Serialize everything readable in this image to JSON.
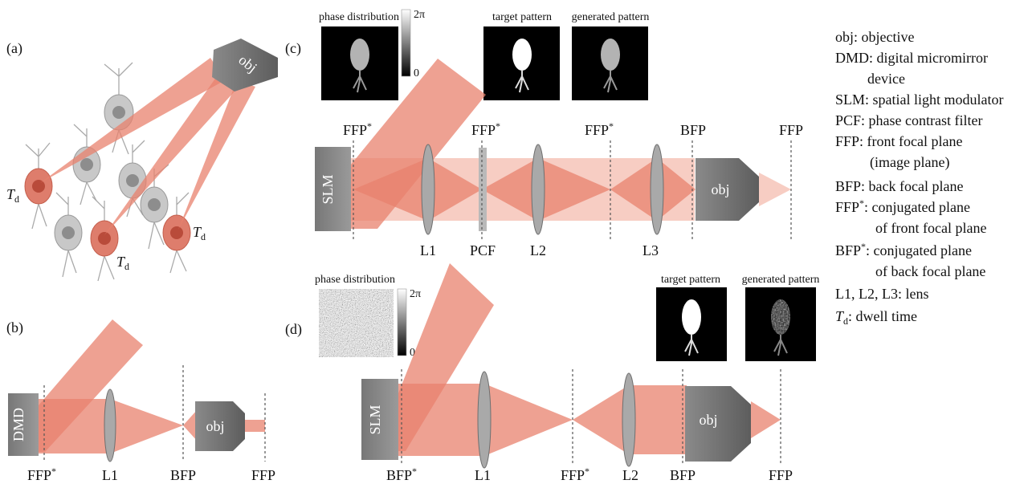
{
  "panel_a": {
    "label": "(a)",
    "obj": "obj",
    "dwell_labels": [
      {
        "base": "T",
        "sub": "d"
      },
      {
        "base": "T",
        "sub": "d"
      },
      {
        "base": "T",
        "sub": "d"
      }
    ]
  },
  "panel_b": {
    "label": "(b)",
    "dmd": "DMD",
    "obj": "obj",
    "bottom_labels": [
      {
        "text": "FFP",
        "sup": "*"
      },
      {
        "text": "L1"
      },
      {
        "text": "BFP"
      },
      {
        "text": "FFP"
      }
    ]
  },
  "panel_c": {
    "label": "(c)",
    "slm": "SLM",
    "obj": "obj",
    "images": [
      {
        "title": "phase distribution",
        "colorbar": {
          "max": "2π",
          "min": "0"
        }
      },
      {
        "title": "target pattern"
      },
      {
        "title": "generated pattern"
      }
    ],
    "top_labels": [
      {
        "text": "FFP",
        "sup": "*"
      },
      {
        "text": "FFP",
        "sup": "*"
      },
      {
        "text": "FFP",
        "sup": "*"
      },
      {
        "text": "BFP"
      },
      {
        "text": "FFP"
      }
    ],
    "bottom_labels": [
      "L1",
      "PCF",
      "L2",
      "L3"
    ]
  },
  "panel_d": {
    "label": "(d)",
    "slm": "SLM",
    "obj": "obj",
    "images": [
      {
        "title": "phase distribution",
        "colorbar": {
          "max": "2π",
          "min": "0"
        }
      },
      {
        "title": "target pattern"
      },
      {
        "title": "generated pattern"
      }
    ],
    "bottom_labels": [
      {
        "text": "BFP",
        "sup": "*"
      },
      {
        "text": "L1"
      },
      {
        "text": "FFP",
        "sup": "*"
      },
      {
        "text": "L2"
      },
      {
        "text": "BFP"
      },
      {
        "text": "FFP"
      }
    ]
  },
  "legend": [
    {
      "text": "obj: objective"
    },
    {
      "text": "DMD: digital micromirror"
    },
    {
      "text": "device"
    },
    {
      "text": "SLM: spatial light modulator"
    },
    {
      "text": "PCF: phase contrast filter"
    },
    {
      "text": "FFP: front focal plane"
    },
    {
      "text": "(image plane)"
    },
    {
      "text": "BFP: back focal plane"
    },
    {
      "text": "FFP",
      "sup": "*",
      "rest": ": conjugated plane"
    },
    {
      "text": "of front focal plane"
    },
    {
      "text": "BFP",
      "sup": "*",
      "rest": ": conjugated plane"
    },
    {
      "text": "of back focal plane"
    },
    {
      "text": "L1, L2, L3: lens"
    },
    {
      "base": "T",
      "sub": "d",
      "rest": ": dwell time"
    }
  ]
}
